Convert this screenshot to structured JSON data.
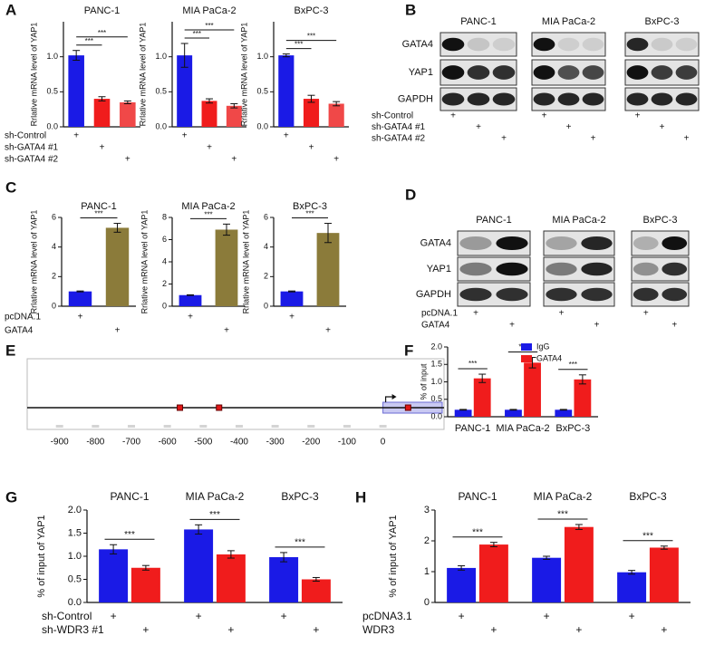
{
  "panel_labels": [
    "A",
    "B",
    "C",
    "D",
    "E",
    "F",
    "G",
    "H"
  ],
  "chart_data": [
    {
      "type": "bar",
      "title": "PANC-1",
      "ylabel": "Rrlative mRNA level of YAP1",
      "values": [
        1.02,
        0.4,
        0.35
      ],
      "errors": [
        0.07,
        0.03,
        0.02
      ],
      "colors": [
        "#1a1ae6",
        "#f01c1c",
        "#f04848"
      ],
      "ylim": [
        0,
        1.5
      ],
      "yticks": [
        {
          "value": 0,
          "label": "0.0"
        },
        {
          "value": 0.5,
          "label": "0.5"
        },
        {
          "value": 1,
          "label": "1.0"
        }
      ],
      "significance": [
        {
          "between": [
            0,
            1
          ],
          "label": "***"
        },
        {
          "between": [
            0,
            2
          ],
          "label": "***"
        }
      ],
      "condition_labels": [
        "sh-Control",
        "sh-GATA4 #1",
        "sh-GATA4 #2"
      ],
      "conditions": [
        [
          "+",
          null,
          null
        ],
        [
          null,
          "+",
          null
        ],
        [
          null,
          null,
          "+"
        ]
      ]
    },
    {
      "type": "bar",
      "title": "MIA PaCa-2",
      "ylabel": "Rrlative mRNA level of YAP1",
      "values": [
        1.02,
        0.37,
        0.3
      ],
      "errors": [
        0.17,
        0.03,
        0.03
      ],
      "colors": [
        "#1a1ae6",
        "#f01c1c",
        "#f04848"
      ],
      "ylim": [
        0,
        1.5
      ],
      "yticks": [
        {
          "value": 0,
          "label": "0.0"
        },
        {
          "value": 0.5,
          "label": "0.5"
        },
        {
          "value": 1,
          "label": "1.0"
        }
      ],
      "significance": [
        {
          "between": [
            0,
            1
          ],
          "label": "***"
        },
        {
          "between": [
            0,
            2
          ],
          "label": "***"
        }
      ],
      "conditions": [
        [
          "+",
          null,
          null
        ],
        [
          null,
          "+",
          null
        ],
        [
          null,
          null,
          "+"
        ]
      ]
    },
    {
      "type": "bar",
      "title": "BxPC-3",
      "ylabel": "Rrlative mRNA level of YAP1",
      "values": [
        1.02,
        0.4,
        0.33
      ],
      "errors": [
        0.02,
        0.05,
        0.03
      ],
      "colors": [
        "#1a1ae6",
        "#f01c1c",
        "#f04848"
      ],
      "ylim": [
        0,
        1.5
      ],
      "yticks": [
        {
          "value": 0,
          "label": "0.0"
        },
        {
          "value": 0.5,
          "label": "0.5"
        },
        {
          "value": 1,
          "label": "1.0"
        }
      ],
      "significance": [
        {
          "between": [
            0,
            1
          ],
          "label": "***"
        },
        {
          "between": [
            0,
            2
          ],
          "label": "***"
        }
      ],
      "conditions": [
        [
          "+",
          null,
          null
        ],
        [
          null,
          "+",
          null
        ],
        [
          null,
          null,
          "+"
        ]
      ]
    },
    {
      "type": "bar",
      "title": "PANC-1",
      "ylabel": "Rrlative mRNA level of YAP1",
      "values": [
        1.0,
        5.3
      ],
      "errors": [
        0.03,
        0.3
      ],
      "colors": [
        "#1a1ae6",
        "#8b7b3a"
      ],
      "ylim": [
        0,
        6
      ],
      "yticks": [
        0,
        2,
        4,
        6
      ],
      "significance": [
        {
          "between": [
            0,
            1
          ],
          "label": "***"
        }
      ],
      "condition_labels": [
        "pcDNA.1",
        "GATA4"
      ],
      "conditions": [
        [
          "+",
          null
        ],
        [
          null,
          "+"
        ]
      ]
    },
    {
      "type": "bar",
      "title": "MIA PaCa-2",
      "ylabel": "Rrlative mRNA level of YAP1",
      "values": [
        1.0,
        6.9
      ],
      "errors": [
        0.03,
        0.5
      ],
      "colors": [
        "#1a1ae6",
        "#8b7b3a"
      ],
      "ylim": [
        0,
        8
      ],
      "yticks": [
        0,
        2,
        4,
        6,
        8
      ],
      "significance": [
        {
          "between": [
            0,
            1
          ],
          "label": "***"
        }
      ],
      "conditions": [
        [
          "+",
          null
        ],
        [
          null,
          "+"
        ]
      ]
    },
    {
      "type": "bar",
      "title": "BxPC-3",
      "ylabel": "Rrlative mRNA level of YAP1",
      "values": [
        1.0,
        4.95
      ],
      "errors": [
        0.03,
        0.65
      ],
      "colors": [
        "#1a1ae6",
        "#8b7b3a"
      ],
      "ylim": [
        0,
        6
      ],
      "yticks": [
        0,
        2,
        4,
        6
      ],
      "significance": [
        {
          "between": [
            0,
            1
          ],
          "label": "***"
        }
      ],
      "conditions": [
        [
          "+",
          null
        ],
        [
          null,
          "+"
        ]
      ]
    },
    {
      "type": "promoter",
      "xlim": [
        -990,
        170
      ],
      "xticks": [
        -900,
        -800,
        -700,
        -600,
        -500,
        -400,
        -300,
        -200,
        -100,
        0
      ],
      "sites": [
        -565,
        -456,
        70
      ]
    },
    {
      "type": "grouped_bar",
      "ylabel": "% of input",
      "categories": [
        "PANC-1",
        "MIA PaCa-2",
        "BxPC-3"
      ],
      "category_labels": "bottom",
      "series": [
        {
          "name": "IgG",
          "color": "#1a1ae6",
          "values": [
            0.2,
            0.2,
            0.2
          ],
          "errors": [
            0.01,
            0.01,
            0.01
          ]
        },
        {
          "name": "GATA4",
          "color": "#f01c1c",
          "values": [
            1.1,
            1.55,
            1.07
          ],
          "errors": [
            0.12,
            0.15,
            0.13
          ]
        }
      ],
      "ylim": [
        0,
        2
      ],
      "yticks": [
        {
          "value": 0,
          "label": "0.0"
        },
        {
          "value": 0.5,
          "label": "0.5"
        },
        {
          "value": 1,
          "label": "1.0"
        },
        {
          "value": 1.5,
          "label": "1.5"
        },
        {
          "value": 2,
          "label": "2.0"
        }
      ],
      "significance": [
        "***",
        "***",
        "***"
      ],
      "legend": "top-right"
    },
    {
      "type": "grouped_bar",
      "ylabel": "% of input of YAP1",
      "categories": [
        "PANC-1",
        "MIA PaCa-2",
        "BxPC-3"
      ],
      "category_labels": "top",
      "series": [
        {
          "color": "#1a1ae6",
          "values": [
            1.15,
            1.58,
            0.98
          ],
          "errors": [
            0.1,
            0.1,
            0.1
          ]
        },
        {
          "color": "#f01c1c",
          "values": [
            0.75,
            1.04,
            0.5
          ],
          "errors": [
            0.05,
            0.08,
            0.04
          ]
        }
      ],
      "ylim": [
        0,
        2
      ],
      "yticks": [
        {
          "value": 0,
          "label": "0.0"
        },
        {
          "value": 0.5,
          "label": "0.5"
        },
        {
          "value": 1,
          "label": "1.0"
        },
        {
          "value": 1.5,
          "label": "1.5"
        },
        {
          "value": 2,
          "label": "2.0"
        }
      ],
      "significance": [
        "***",
        "***",
        "***"
      ],
      "condition_labels": [
        "sh-Control",
        "sh-WDR3 #1"
      ],
      "conditions": [
        [
          "+",
          null,
          "+",
          null,
          "+",
          null
        ],
        [
          null,
          "+",
          null,
          "+",
          null,
          "+"
        ]
      ]
    },
    {
      "type": "grouped_bar",
      "ylabel": "% of input of YAP1",
      "categories": [
        "PANC-1",
        "MIA PaCa-2",
        "BxPC-3"
      ],
      "category_labels": "top",
      "series": [
        {
          "color": "#1a1ae6",
          "values": [
            1.12,
            1.45,
            0.98
          ],
          "errors": [
            0.07,
            0.05,
            0.06
          ]
        },
        {
          "color": "#f01c1c",
          "values": [
            1.88,
            2.45,
            1.78
          ],
          "errors": [
            0.07,
            0.08,
            0.05
          ]
        }
      ],
      "ylim": [
        0,
        3
      ],
      "yticks": [
        0,
        1,
        2,
        3
      ],
      "significance": [
        "***",
        "***",
        "***"
      ],
      "condition_labels": [
        "pcDNA3.1",
        "WDR3"
      ],
      "conditions": [
        [
          "+",
          null,
          "+",
          null,
          "+",
          null
        ],
        [
          null,
          "+",
          null,
          "+",
          null,
          "+"
        ]
      ]
    }
  ],
  "blots": [
    {
      "groups": [
        "PANC-1",
        "MIA PaCa-2",
        "BxPC-3"
      ],
      "rows": [
        "GATA4",
        "YAP1",
        "GAPDH"
      ],
      "condition_labels": [
        "sh-Control",
        "sh-GATA4 #1",
        "sh-GATA4 #2"
      ],
      "conditions": [
        [
          "+",
          null,
          null,
          "+",
          null,
          null,
          "+",
          null,
          null
        ],
        [
          null,
          "+",
          null,
          null,
          "+",
          null,
          null,
          "+",
          null
        ],
        [
          null,
          null,
          "+",
          null,
          null,
          "+",
          null,
          null,
          "+"
        ]
      ]
    },
    {
      "groups": [
        "PANC-1",
        "MIA PaCa-2",
        "BxPC-3"
      ],
      "rows": [
        "GATA4",
        "YAP1",
        "GAPDH"
      ],
      "condition_labels": [
        "pcDNA.1",
        "GATA4"
      ],
      "conditions": [
        [
          "+",
          null,
          "+",
          null,
          "+",
          null
        ],
        [
          null,
          "+",
          null,
          "+",
          null,
          "+"
        ]
      ]
    }
  ]
}
